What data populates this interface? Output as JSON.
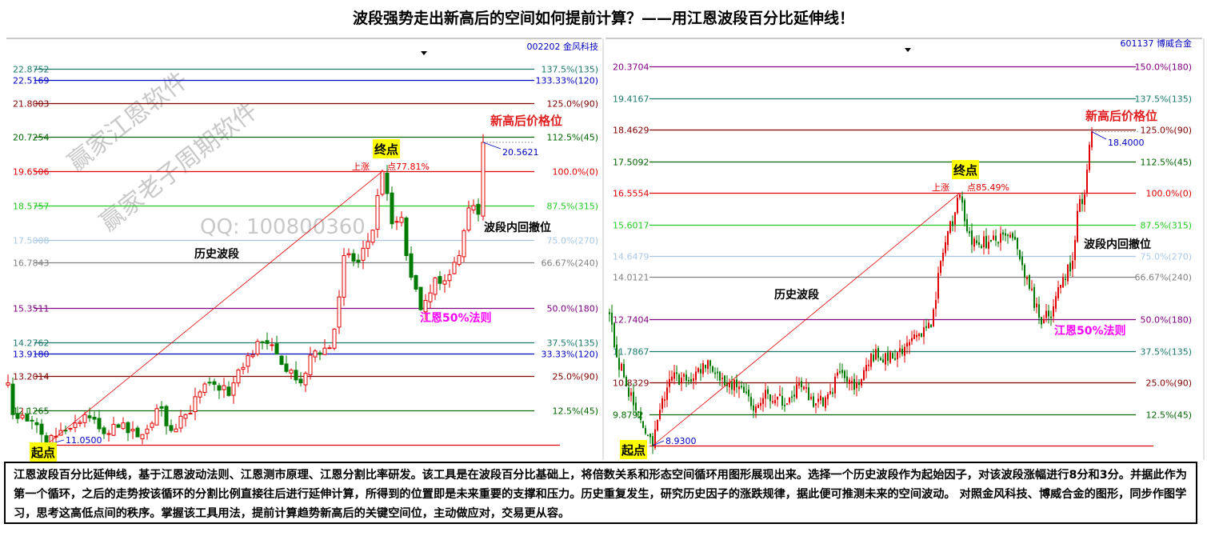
{
  "title": "波段强势走出新高后的空间如何提前计算？——用江恩波段百分比延伸线！",
  "footer_text": "江恩波段百分比延伸线，基于江恩波动法则、江恩测市原理、江恩分割比率研发。该工具是在波段百分比基础上，将倍数关系和形态空间循环用图形展现出来。选择一个历史波段作为起始因子，对该波段涨幅进行8分和3分。并据此作为第一个循环，之后的走势按该循环的分割比例直接往后进行延伸计算，所得到的位置即是未来重要的支撑和压力。历史重复发生，研究历史因子的涨跌规律，据此便可推测未来的空间波动。 对照金风科技、博威合金的图形，同步作图学习，思考这高低点间的秩序。掌握该工具用法，提前计算趋势新高后的关键空间位，主动做应对，交易更从容。",
  "colors": {
    "up": "#e00000",
    "down": "#007a00",
    "highlight": "#ffff00",
    "magenta": "#ff00ff",
    "price_tag": "#0000c0"
  },
  "chart_data": [
    {
      "type": "candlestick",
      "stock": "002202 金风科技",
      "watermarks": [
        "赢家江恩软件",
        "赢家老子周期软件",
        "QQ: 100800360"
      ],
      "levels": [
        {
          "pct": "137.5%(135)",
          "price": "22.8752",
          "value": 22.8752,
          "color": "#1a7a6a"
        },
        {
          "pct": "133.33%(120)",
          "price": "22.5169",
          "value": 22.5169,
          "color": "#0000c0"
        },
        {
          "pct": "125.0%(90)",
          "price": "21.8003",
          "value": 21.8003,
          "color": "#800000"
        },
        {
          "pct": "112.5%(45)",
          "price": "20.7254",
          "value": 20.7254,
          "color": "#006400"
        },
        {
          "pct": "100.0%(0)",
          "price": "19.6506",
          "value": 19.6506,
          "color": "#e00000"
        },
        {
          "pct": "87.5%(315)",
          "price": "18.5757",
          "value": 18.5757,
          "color": "#22cc22"
        },
        {
          "pct": "75.0%(270)",
          "price": "17.5008",
          "value": 17.5008,
          "color": "#a8c8e8"
        },
        {
          "pct": "66.67%(240)",
          "price": "16.7843",
          "value": 16.7843,
          "color": "#808080"
        },
        {
          "pct": "50.0%(180)",
          "price": "15.3511",
          "value": 15.3511,
          "color": "#800080"
        },
        {
          "pct": "37.5%(135)",
          "price": "14.2762",
          "value": 14.2762,
          "color": "#1a7a6a"
        },
        {
          "pct": "33.33%(120)",
          "price": "13.9180",
          "value": 13.918,
          "color": "#0000c0"
        },
        {
          "pct": "25.0%(90)",
          "price": "13.2014",
          "value": 13.2014,
          "color": "#800000"
        },
        {
          "pct": "12.5%(45)",
          "price": "12.1265",
          "value": 12.1265,
          "color": "#006400"
        }
      ],
      "base": 11.05,
      "start_price": "11.0500",
      "high_price": "20.5621",
      "high_value": 20.5621,
      "end_value": 19.6506,
      "start_label": "起点",
      "end_label": "终点",
      "rise_label": "上涨　　点77.81%",
      "annotations": {
        "new_high": "新高后价格位",
        "retrace": "波段内回撤位",
        "history": "历史波段",
        "gann50": "江恩50%法则"
      },
      "path": [
        [
          0,
          13.0
        ],
        [
          1,
          12.0
        ],
        [
          5,
          11.8
        ],
        [
          8,
          11.05
        ],
        [
          11,
          11.5
        ],
        [
          16,
          12.0
        ],
        [
          20,
          11.4
        ],
        [
          23,
          11.6
        ],
        [
          27,
          11.3
        ],
        [
          32,
          12.2
        ],
        [
          34,
          11.5
        ],
        [
          37,
          12.0
        ],
        [
          42,
          13.0
        ],
        [
          46,
          12.6
        ],
        [
          48,
          13.4
        ],
        [
          52,
          14.3
        ],
        [
          56,
          13.9
        ],
        [
          59,
          13.4
        ],
        [
          61,
          13.0
        ],
        [
          64,
          14.0
        ],
        [
          67,
          14.1
        ],
        [
          69,
          15.7
        ],
        [
          70,
          17.0
        ],
        [
          73,
          16.8
        ],
        [
          76,
          17.8
        ],
        [
          78,
          19.65
        ],
        [
          80,
          18.0
        ],
        [
          82,
          18.2
        ],
        [
          83,
          17.0
        ],
        [
          86,
          15.3
        ],
        [
          89,
          16.3
        ],
        [
          92,
          16.4
        ],
        [
          94,
          17.0
        ],
        [
          96,
          18.5
        ],
        [
          98,
          18.3
        ],
        [
          99,
          20.56
        ]
      ],
      "start_bar": 8,
      "end_bar": 78
    },
    {
      "type": "candlestick",
      "stock": "601137 博威合金",
      "watermarks": [],
      "levels": [
        {
          "pct": "150.0%(180)",
          "price": "20.3704",
          "value": 20.3704,
          "color": "#800080"
        },
        {
          "pct": "137.5%(135)",
          "price": "19.4167",
          "value": 19.4167,
          "color": "#1a7a6a"
        },
        {
          "pct": "125.0%(90)",
          "price": "18.4629",
          "value": 18.4629,
          "color": "#800000"
        },
        {
          "pct": "112.5%(45)",
          "price": "17.5092",
          "value": 17.5092,
          "color": "#006400"
        },
        {
          "pct": "100.0%(0)",
          "price": "16.5554",
          "value": 16.5554,
          "color": "#e00000"
        },
        {
          "pct": "87.5%(315)",
          "price": "15.6017",
          "value": 15.6017,
          "color": "#22cc22"
        },
        {
          "pct": "75.0%(270)",
          "price": "14.6479",
          "value": 14.6479,
          "color": "#a8c8e8"
        },
        {
          "pct": "66.67%(240)",
          "price": "14.0121",
          "value": 14.0121,
          "color": "#808080"
        },
        {
          "pct": "50.0%(180)",
          "price": "12.7404",
          "value": 12.7404,
          "color": "#800080"
        },
        {
          "pct": "37.5%(135)",
          "price": "11.7867",
          "value": 11.7867,
          "color": "#1a7a6a"
        },
        {
          "pct": "25.0%(90)",
          "price": "10.8329",
          "value": 10.8329,
          "color": "#800000"
        },
        {
          "pct": "12.5%(45)",
          "price": "9.8792",
          "value": 9.8792,
          "color": "#006400"
        }
      ],
      "base": 8.93,
      "start_price": "8.9300",
      "high_price": "18.4000",
      "high_value": 18.4,
      "end_value": 16.5554,
      "start_label": "起点",
      "end_label": "终点",
      "rise_label": "上涨　　点85.49%",
      "annotations": {
        "new_high": "新高后价格位",
        "retrace": "波段内回撤位",
        "history": "历史波段",
        "gann50": "江恩50%法则"
      },
      "path": [
        [
          0,
          12.9
        ],
        [
          3,
          11.6
        ],
        [
          6,
          11.0
        ],
        [
          11,
          10.0
        ],
        [
          15,
          9.3
        ],
        [
          18,
          8.93
        ],
        [
          21,
          10.0
        ],
        [
          26,
          11.0
        ],
        [
          33,
          10.9
        ],
        [
          41,
          11.5
        ],
        [
          46,
          10.9
        ],
        [
          53,
          10.7
        ],
        [
          61,
          10.1
        ],
        [
          66,
          10.5
        ],
        [
          74,
          10.2
        ],
        [
          79,
          10.8
        ],
        [
          86,
          10.2
        ],
        [
          93,
          10.5
        ],
        [
          94,
          11.0
        ],
        [
          103,
          10.8
        ],
        [
          109,
          11.7
        ],
        [
          116,
          11.5
        ],
        [
          123,
          11.9
        ],
        [
          129,
          12.3
        ],
        [
          134,
          12.5
        ],
        [
          138,
          14.5
        ],
        [
          146,
          16.5
        ],
        [
          151,
          15.0
        ],
        [
          159,
          15.1
        ],
        [
          168,
          15.2
        ],
        [
          174,
          14.0
        ],
        [
          179,
          12.8
        ],
        [
          184,
          12.8
        ],
        [
          189,
          14.0
        ],
        [
          193,
          14.5
        ],
        [
          195,
          16.0
        ],
        [
          198,
          16.5
        ],
        [
          200,
          18.0
        ],
        [
          201,
          18.4
        ]
      ],
      "start_bar": 18,
      "end_bar": 146
    }
  ]
}
